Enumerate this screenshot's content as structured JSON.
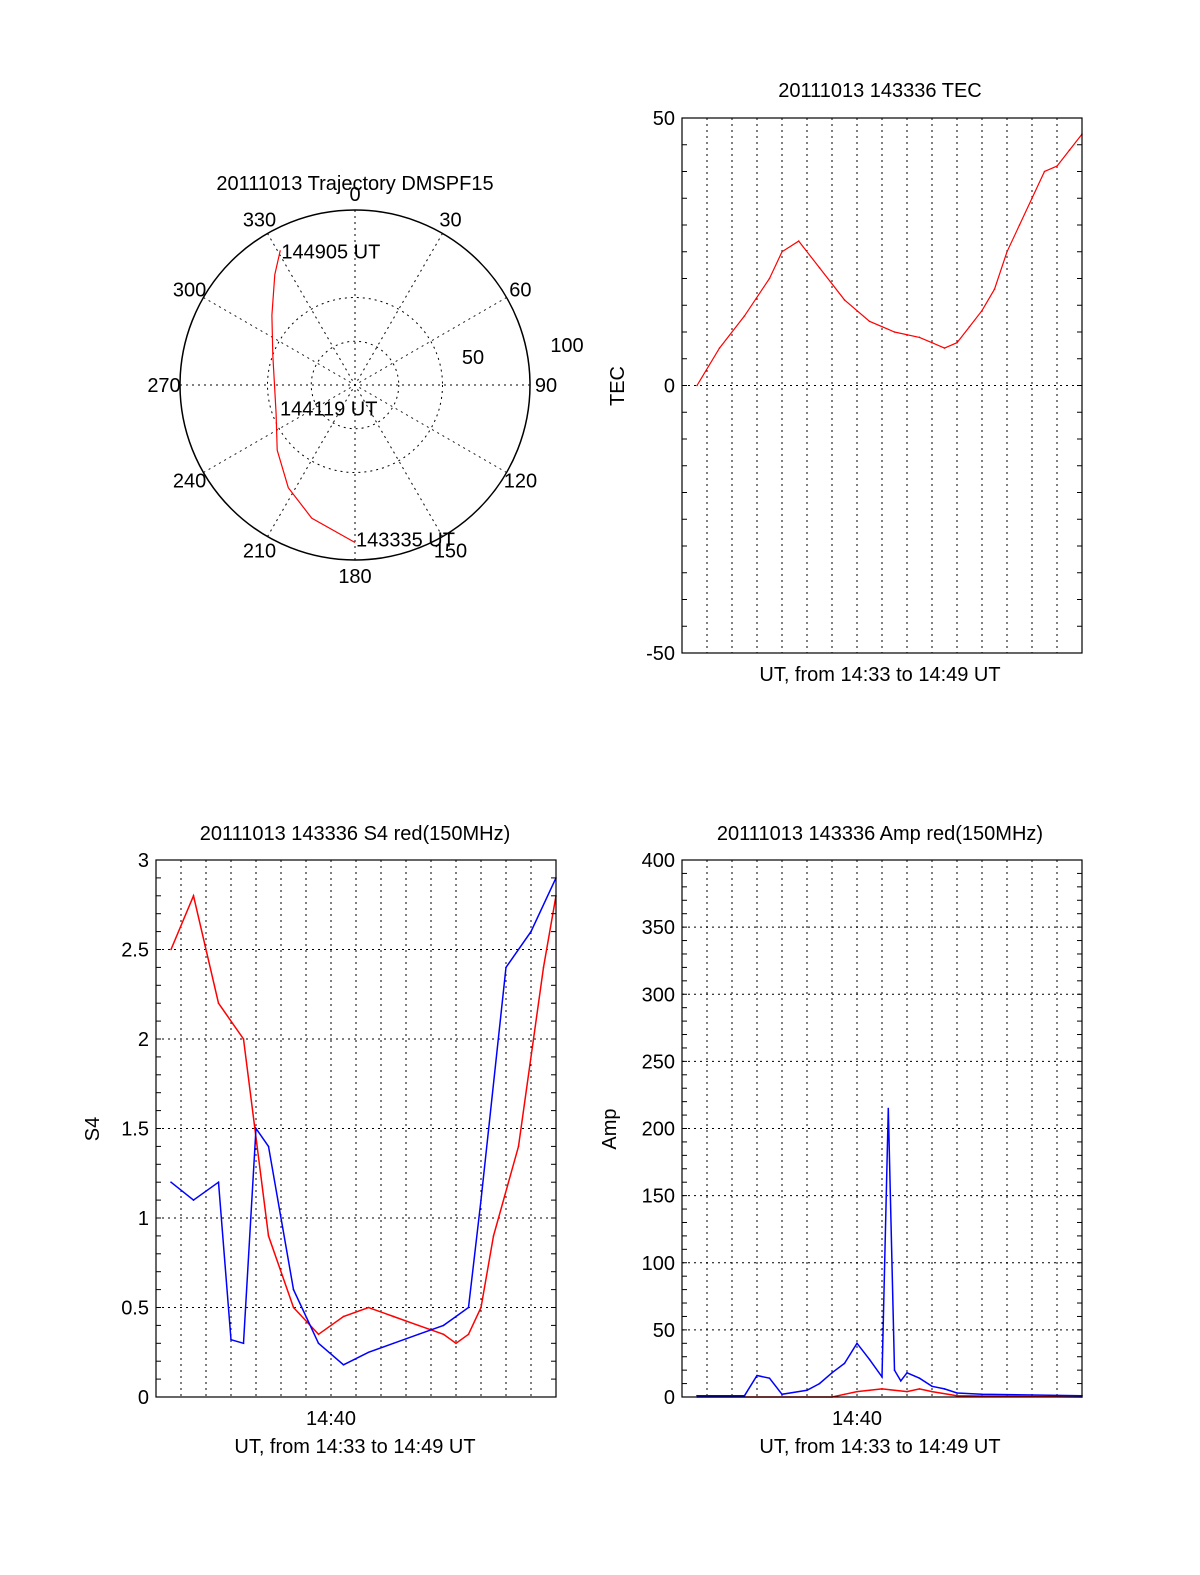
{
  "page": {
    "background": "#ffffff"
  },
  "colors": {
    "red": "#ff0000",
    "blue": "#0000ff",
    "axis": "#000000"
  },
  "chart_data": [
    {
      "type": "polar",
      "title": "20111013 Trajectory DMSPF15",
      "angle_labels": [
        "0",
        "30",
        "60",
        "90",
        "120",
        "150",
        "180",
        "210",
        "240",
        "270",
        "300",
        "330"
      ],
      "radius_labels": [
        "50",
        "100"
      ],
      "rlim": [
        0,
        100
      ],
      "grid": true,
      "series": [
        {
          "color": "red",
          "points": [
            {
              "az": 180,
              "r": 90
            },
            {
              "az": 198,
              "r": 80
            },
            {
              "az": 213,
              "r": 70
            },
            {
              "az": 230,
              "r": 58
            },
            {
              "az": 250,
              "r": 48
            },
            {
              "az": 270,
              "r": 46
            },
            {
              "az": 290,
              "r": 50
            },
            {
              "az": 310,
              "r": 62
            },
            {
              "az": 324,
              "r": 78
            },
            {
              "az": 331,
              "r": 88
            }
          ]
        }
      ],
      "annotations": [
        {
          "text": "144905 UT",
          "az": 331,
          "r": 88
        },
        {
          "text": "144119 UT",
          "az": 180,
          "r": 6
        },
        {
          "text": "143335 UT",
          "az": 180,
          "r": 90
        }
      ]
    },
    {
      "type": "line",
      "title": "20111013 143336 TEC",
      "xlabel": "UT, from 14:33 to 14:49 UT",
      "ylabel": "TEC",
      "xlim": [
        "14:33",
        "14:49"
      ],
      "ylim": [
        -50,
        50
      ],
      "yticks": [
        "-50",
        "0",
        "50"
      ],
      "xticks": [],
      "grid": true,
      "series": [
        {
          "color": "red",
          "x": [
            "14:33:36",
            "14:34:30",
            "14:35:30",
            "14:36:30",
            "14:37:00",
            "14:37:40",
            "14:38:30",
            "14:39:30",
            "14:40:30",
            "14:41:30",
            "14:42:30",
            "14:43:00",
            "14:43:30",
            "14:44:00",
            "14:44:30",
            "14:45:00",
            "14:45:30",
            "14:46:00",
            "14:46:30",
            "14:47:00",
            "14:47:30",
            "14:48:00",
            "14:48:30",
            "14:49:00"
          ],
          "y": [
            0,
            7,
            13,
            20,
            25,
            27,
            22,
            16,
            12,
            10,
            9,
            8,
            7,
            8,
            11,
            14,
            18,
            25,
            30,
            35,
            40,
            41,
            44,
            47
          ]
        }
      ]
    },
    {
      "type": "line",
      "title": "20111013 143336 S4 red(150MHz)",
      "xlabel": "UT, from 14:33 to 14:49 UT",
      "ylabel": "S4",
      "xlim": [
        "14:33",
        "14:49"
      ],
      "ylim": [
        0,
        3
      ],
      "yticks": [
        "0",
        "0.5",
        "1",
        "1.5",
        "2",
        "2.5",
        "3"
      ],
      "xticks": [
        "14:40"
      ],
      "grid": true,
      "series": [
        {
          "color": "red",
          "x": [
            "14:33:36",
            "14:34:30",
            "14:35:30",
            "14:36:30",
            "14:37:30",
            "14:38:30",
            "14:39:30",
            "14:40:30",
            "14:41:30",
            "14:42:30",
            "14:43:30",
            "14:44:30",
            "14:45:00",
            "14:45:30",
            "14:46:00",
            "14:46:30",
            "14:47:30",
            "14:48:30",
            "14:49:00"
          ],
          "y": [
            2.5,
            2.8,
            2.2,
            2.0,
            0.9,
            0.5,
            0.35,
            0.45,
            0.5,
            0.45,
            0.4,
            0.35,
            0.3,
            0.35,
            0.5,
            0.9,
            1.4,
            2.4,
            2.8
          ]
        },
        {
          "color": "blue",
          "x": [
            "14:33:36",
            "14:34:30",
            "14:35:30",
            "14:36:00",
            "14:36:30",
            "14:37:00",
            "14:37:30",
            "14:38:30",
            "14:39:30",
            "14:40:30",
            "14:41:30",
            "14:42:30",
            "14:43:30",
            "14:44:30",
            "14:45:00",
            "14:45:30",
            "14:46:00",
            "14:47:00",
            "14:48:00",
            "14:49:00"
          ],
          "y": [
            1.2,
            1.1,
            1.2,
            0.32,
            0.3,
            1.5,
            1.4,
            0.6,
            0.3,
            0.18,
            0.25,
            0.3,
            0.35,
            0.4,
            0.45,
            0.5,
            1.1,
            2.4,
            2.6,
            2.9
          ]
        }
      ]
    },
    {
      "type": "line",
      "title": "20111013 143336 Amp red(150MHz)",
      "xlabel": "UT, from 14:33 to 14:49 UT",
      "ylabel": "Amp",
      "xlim": [
        "14:33",
        "14:49"
      ],
      "ylim": [
        0,
        400
      ],
      "yticks": [
        "0",
        "50",
        "100",
        "150",
        "200",
        "250",
        "300",
        "350",
        "400"
      ],
      "xticks": [
        "14:40"
      ],
      "grid": true,
      "series": [
        {
          "color": "red",
          "x": [
            "14:33:36",
            "14:39:00",
            "14:39:30",
            "14:40:00",
            "14:40:30",
            "14:41:00",
            "14:41:30",
            "14:42:00",
            "14:42:30",
            "14:43:00",
            "14:44:00",
            "14:49:00"
          ],
          "y": [
            0,
            0,
            2,
            4,
            5,
            6,
            5,
            4,
            6,
            4,
            1,
            0
          ]
        },
        {
          "color": "blue",
          "x": [
            "14:33:36",
            "14:35:30",
            "14:36:00",
            "14:36:30",
            "14:37:00",
            "14:38:00",
            "14:38:30",
            "14:39:00",
            "14:39:30",
            "14:40:00",
            "14:40:30",
            "14:41:00",
            "14:41:15",
            "14:41:30",
            "14:41:45",
            "14:42:00",
            "14:42:30",
            "14:43:00",
            "14:43:30",
            "14:44:00",
            "14:45:00",
            "14:49:00"
          ],
          "y": [
            1,
            1,
            16,
            14,
            2,
            5,
            10,
            18,
            25,
            40,
            28,
            15,
            215,
            20,
            12,
            18,
            14,
            8,
            6,
            3,
            2,
            1
          ]
        }
      ]
    }
  ]
}
